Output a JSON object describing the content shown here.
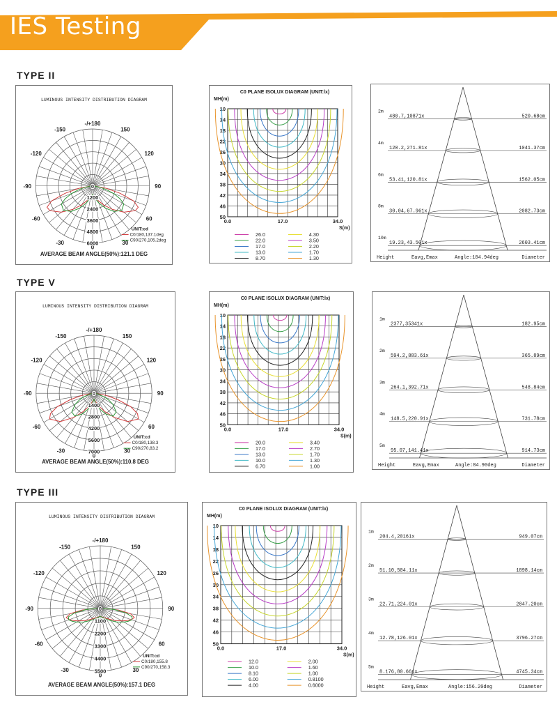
{
  "page": {
    "title": "IES Testing",
    "accent_color": "#f5a01e"
  },
  "sections": [
    {
      "label": "TYPE II",
      "polar": {
        "title": "LUMINOUS INTENSITY DISTRIBUTION DIAGRAM",
        "angle_labels": [
          "-/+180",
          "-150",
          "150",
          "-120",
          "120",
          "-90",
          "90",
          "-60",
          "60",
          "-30",
          "30",
          "0"
        ],
        "ring_labels": [
          "0",
          "1200",
          "2400",
          "3600",
          "4800",
          "6000"
        ],
        "max_value": 6000,
        "unit": "UNIT:cd",
        "series": [
          {
            "name": "C0/180,137.1deg",
            "color": "#d23c3c"
          },
          {
            "name": "C90/270,105.2deg",
            "color": "#2f9a3a"
          }
        ],
        "beam_angle": "AVERAGE BEAM ANGLE(50%):121.1 DEG"
      },
      "isolux": {
        "title": "C0 PLANE ISOLUX DIAGRAM (UNIT:lx)",
        "ylabel": "MH(m)",
        "xlabel": "S(m)",
        "y_ticks": [
          "10",
          "14",
          "18",
          "22",
          "26",
          "30",
          "34",
          "38",
          "42",
          "46",
          "50"
        ],
        "x_ticks": [
          "0.0",
          "17.0",
          "34.0"
        ],
        "legend": [
          {
            "value": "26.0",
            "color": "#cc3fa8"
          },
          {
            "value": "4.30",
            "color": "#e8df36"
          },
          {
            "value": "22.0",
            "color": "#3aa04a"
          },
          {
            "value": "3.50",
            "color": "#b83ec6"
          },
          {
            "value": "17.0",
            "color": "#3a78c8"
          },
          {
            "value": "2.20",
            "color": "#c7d62e"
          },
          {
            "value": "13.0",
            "color": "#40b8c6"
          },
          {
            "value": "1.70",
            "color": "#46a6d6"
          },
          {
            "value": "8.70",
            "color": "#222222"
          },
          {
            "value": "1.30",
            "color": "#e8932a"
          }
        ]
      },
      "cone": {
        "rows": [
          {
            "height": "2m",
            "values": "480.7,10871x",
            "diameter": "520.68cm"
          },
          {
            "height": "4m",
            "values": "120.2,271.81x",
            "diameter": "1041.37cm"
          },
          {
            "height": "6m",
            "values": "53.41,120.81x",
            "diameter": "1562.05cm"
          },
          {
            "height": "8m",
            "values": "30.04,67.961x",
            "diameter": "2082.73cm"
          },
          {
            "height": "10m",
            "values": "19.23,43.501x",
            "diameter": "2603.41cm"
          }
        ],
        "footer": {
          "height": "Height",
          "values": "Eavg,Emax",
          "angle": "Angle:104.94deg",
          "diameter": "Diameter"
        }
      }
    },
    {
      "label": "TYPE V",
      "polar": {
        "title": "LUMINOUS INTENSITY DISTRIBUTION DIAGRAM",
        "angle_labels": [
          "-/+180",
          "-150",
          "150",
          "-120",
          "120",
          "-90",
          "90",
          "-60",
          "60",
          "-30",
          "30",
          "0"
        ],
        "ring_labels": [
          "0",
          "1400",
          "2800",
          "4200",
          "5600",
          "7000"
        ],
        "max_value": 7000,
        "unit": "UNIT:cd",
        "series": [
          {
            "name": "C0/180,138.3",
            "color": "#d23c3c"
          },
          {
            "name": "C90/270,83.2",
            "color": "#2f9a3a"
          }
        ],
        "beam_angle": "AVERAGE BEAM ANGLE(50%):110.8 DEG"
      },
      "isolux": {
        "title": "C0 PLANE ISOLUX DIAGRAM (UNIT:lx)",
        "ylabel": "MH(m)",
        "xlabel": "S(m)",
        "y_ticks": [
          "10",
          "14",
          "18",
          "22",
          "26",
          "30",
          "34",
          "38",
          "42",
          "46",
          "50"
        ],
        "x_ticks": [
          "0.0",
          "17.0",
          "34.0"
        ],
        "legend": [
          {
            "value": "20.0",
            "color": "#cc3fa8"
          },
          {
            "value": "3.40",
            "color": "#e8df36"
          },
          {
            "value": "17.0",
            "color": "#3aa04a"
          },
          {
            "value": "2.70",
            "color": "#b83ec6"
          },
          {
            "value": "13.0",
            "color": "#3a78c8"
          },
          {
            "value": "1.70",
            "color": "#c7d62e"
          },
          {
            "value": "10.0",
            "color": "#40b8c6"
          },
          {
            "value": "1.30",
            "color": "#46a6d6"
          },
          {
            "value": "6.70",
            "color": "#222222"
          },
          {
            "value": "1.00",
            "color": "#e8932a"
          }
        ]
      },
      "cone": {
        "rows": [
          {
            "height": "1m",
            "values": "2377,35341x",
            "diameter": "182.95cm"
          },
          {
            "height": "2m",
            "values": "594.2,883.61x",
            "diameter": "365.89cm"
          },
          {
            "height": "3m",
            "values": "264.1,392.71x",
            "diameter": "548.84cm"
          },
          {
            "height": "4m",
            "values": "148.5,220.91x",
            "diameter": "731.78cm"
          },
          {
            "height": "5m",
            "values": "95.07,141.41x",
            "diameter": "914.73cm"
          }
        ],
        "footer": {
          "height": "Height",
          "values": "Eavg,Emax",
          "angle": "Angle:84.90deg",
          "diameter": "Diameter"
        }
      }
    },
    {
      "label": "TYPE III",
      "polar": {
        "title": "LUMINOUS INTENSITY DISTRIBUTION DIAGRAM",
        "angle_labels": [
          "-/+180",
          "-150",
          "150",
          "-120",
          "120",
          "-90",
          "90",
          "-60",
          "60",
          "-30",
          "30",
          "0"
        ],
        "ring_labels": [
          "0",
          "1100",
          "2200",
          "3300",
          "4400",
          "5500"
        ],
        "max_value": 5500,
        "unit": "UNIT:cd",
        "series": [
          {
            "name": "C0/180,155.8",
            "color": "#d23c3c"
          },
          {
            "name": "C90/270,158.3",
            "color": "#2f9a3a"
          }
        ],
        "beam_angle": "AVERAGE BEAM ANGLE(50%):157.1 DEG"
      },
      "isolux": {
        "title": "C0 PLANE ISOLUX DIAGRAM (UNIT:lx)",
        "ylabel": "MH(m)",
        "xlabel": "S(m)",
        "y_ticks": [
          "10",
          "14",
          "18",
          "22",
          "26",
          "30",
          "34",
          "38",
          "42",
          "46",
          "50"
        ],
        "x_ticks": [
          "0.0",
          "17.0",
          "34.0"
        ],
        "legend": [
          {
            "value": "12.0",
            "color": "#cc3fa8"
          },
          {
            "value": "2.00",
            "color": "#e8df36"
          },
          {
            "value": "10.0",
            "color": "#3aa04a"
          },
          {
            "value": "1.60",
            "color": "#b83ec6"
          },
          {
            "value": "8.10",
            "color": "#3a78c8"
          },
          {
            "value": "1.00",
            "color": "#c7d62e"
          },
          {
            "value": "6.00",
            "color": "#40b8c6"
          },
          {
            "value": "0.8100",
            "color": "#46a6d6"
          },
          {
            "value": "4.00",
            "color": "#222222"
          },
          {
            "value": "0.6000",
            "color": "#e8932a"
          }
        ]
      },
      "cone": {
        "rows": [
          {
            "height": "1m",
            "values": "204.4,20161x",
            "diameter": "949.07cm"
          },
          {
            "height": "2m",
            "values": "51.10,504.11x",
            "diameter": "1898.14cm"
          },
          {
            "height": "3m",
            "values": "22.71,224.01x",
            "diameter": "2847.20cm"
          },
          {
            "height": "4m",
            "values": "12.78,126.01x",
            "diameter": "3796.27cm"
          },
          {
            "height": "5m",
            "values": "8.176,80.661x",
            "diameter": "4745.34cm"
          }
        ],
        "footer": {
          "height": "Height",
          "values": "Eavg,Emax",
          "angle": "Angle:156.20deg",
          "diameter": "Diameter"
        }
      }
    }
  ],
  "chart_data": [
    {
      "type": "polar",
      "section": "TYPE II",
      "title": "LUMINOUS INTENSITY DISTRIBUTION DIAGRAM",
      "rmax": 6000,
      "series": [
        {
          "name": "C0/180,137.1deg",
          "angles_deg": [
            0,
            10,
            20,
            30,
            40,
            50,
            60,
            65,
            70,
            75,
            80,
            90
          ],
          "values": [
            900,
            1150,
            1600,
            2300,
            3200,
            4300,
            5200,
            5300,
            4600,
            3000,
            1500,
            200
          ]
        },
        {
          "name": "C90/270,105.2deg",
          "angles_deg": [
            0,
            10,
            20,
            30,
            40,
            50,
            60,
            65,
            70,
            75,
            80,
            90
          ],
          "values": [
            900,
            1300,
            1900,
            2700,
            3500,
            4000,
            3800,
            3200,
            2400,
            1500,
            800,
            150
          ]
        }
      ]
    },
    {
      "type": "isolux",
      "section": "TYPE II",
      "title": "C0 PLANE ISOLUX DIAGRAM (UNIT:lx)",
      "xlim": [
        0,
        34.0
      ],
      "ylim": [
        10,
        50
      ],
      "levels": [
        26.0,
        22.0,
        17.0,
        13.0,
        8.7,
        4.3,
        3.5,
        2.2,
        1.7,
        1.3
      ]
    },
    {
      "type": "table",
      "section": "TYPE II",
      "angle": "104.94deg",
      "heights_m": [
        2,
        4,
        6,
        8,
        10
      ],
      "eavg_lx": [
        480.7,
        120.2,
        53.41,
        30.04,
        19.23
      ],
      "emax_lx": [
        1087,
        271.8,
        120.8,
        67.96,
        43.5
      ],
      "diameter_cm": [
        520.68,
        1041.37,
        1562.05,
        2082.73,
        2603.41
      ]
    },
    {
      "type": "polar",
      "section": "TYPE V",
      "title": "LUMINOUS INTENSITY DISTRIBUTION DIAGRAM",
      "rmax": 7000,
      "series": [
        {
          "name": "C0/180,138.3",
          "angles_deg": [
            0,
            10,
            20,
            30,
            40,
            50,
            60,
            65,
            70,
            75,
            80,
            90
          ],
          "values": [
            700,
            1000,
            1600,
            2500,
            3800,
            5300,
            6200,
            5800,
            4700,
            3000,
            1500,
            200
          ]
        },
        {
          "name": "C90/270,83.2",
          "angles_deg": [
            0,
            10,
            20,
            30,
            40,
            50,
            60,
            65,
            70,
            75,
            80,
            90
          ],
          "values": [
            700,
            1200,
            2000,
            2900,
            3600,
            3500,
            2600,
            2000,
            1400,
            800,
            400,
            100
          ]
        }
      ]
    },
    {
      "type": "isolux",
      "section": "TYPE V",
      "title": "C0 PLANE ISOLUX DIAGRAM (UNIT:lx)",
      "xlim": [
        0,
        34.0
      ],
      "ylim": [
        10,
        50
      ],
      "levels": [
        20.0,
        17.0,
        13.0,
        10.0,
        6.7,
        3.4,
        2.7,
        1.7,
        1.3,
        1.0
      ]
    },
    {
      "type": "table",
      "section": "TYPE V",
      "angle": "84.90deg",
      "heights_m": [
        1,
        2,
        3,
        4,
        5
      ],
      "eavg_lx": [
        2377,
        594.2,
        264.1,
        148.5,
        95.07
      ],
      "emax_lx": [
        3534,
        883.6,
        392.7,
        220.9,
        141.4
      ],
      "diameter_cm": [
        182.95,
        365.89,
        548.84,
        731.78,
        914.73
      ]
    },
    {
      "type": "polar",
      "section": "TYPE III",
      "title": "LUMINOUS INTENSITY DISTRIBUTION DIAGRAM",
      "rmax": 5500,
      "series": [
        {
          "name": "C0/180,155.8",
          "angles_deg": [
            0,
            10,
            20,
            30,
            40,
            50,
            60,
            65,
            70,
            75,
            80,
            85,
            90
          ],
          "values": [
            700,
            750,
            850,
            1000,
            1250,
            1650,
            2200,
            2550,
            2900,
            3100,
            2700,
            1600,
            300
          ]
        },
        {
          "name": "C90/270,158.3",
          "angles_deg": [
            0,
            10,
            20,
            30,
            40,
            50,
            60,
            65,
            70,
            75,
            80,
            85,
            90
          ],
          "values": [
            700,
            780,
            900,
            1100,
            1400,
            1850,
            2400,
            2700,
            2950,
            2900,
            2300,
            1300,
            250
          ]
        }
      ]
    },
    {
      "type": "isolux",
      "section": "TYPE III",
      "title": "C0 PLANE ISOLUX DIAGRAM (UNIT:lx)",
      "xlim": [
        0,
        34.0
      ],
      "ylim": [
        10,
        50
      ],
      "levels": [
        12.0,
        10.0,
        8.1,
        6.0,
        4.0,
        2.0,
        1.6,
        1.0,
        0.81,
        0.6
      ]
    },
    {
      "type": "table",
      "section": "TYPE III",
      "angle": "156.20deg",
      "heights_m": [
        1,
        2,
        3,
        4,
        5
      ],
      "eavg_lx": [
        204.4,
        51.1,
        22.71,
        12.78,
        8.176
      ],
      "emax_lx": [
        2016,
        504.1,
        224.0,
        126.0,
        80.66
      ],
      "diameter_cm": [
        949.07,
        1898.14,
        2847.2,
        3796.27,
        4745.34
      ]
    }
  ]
}
